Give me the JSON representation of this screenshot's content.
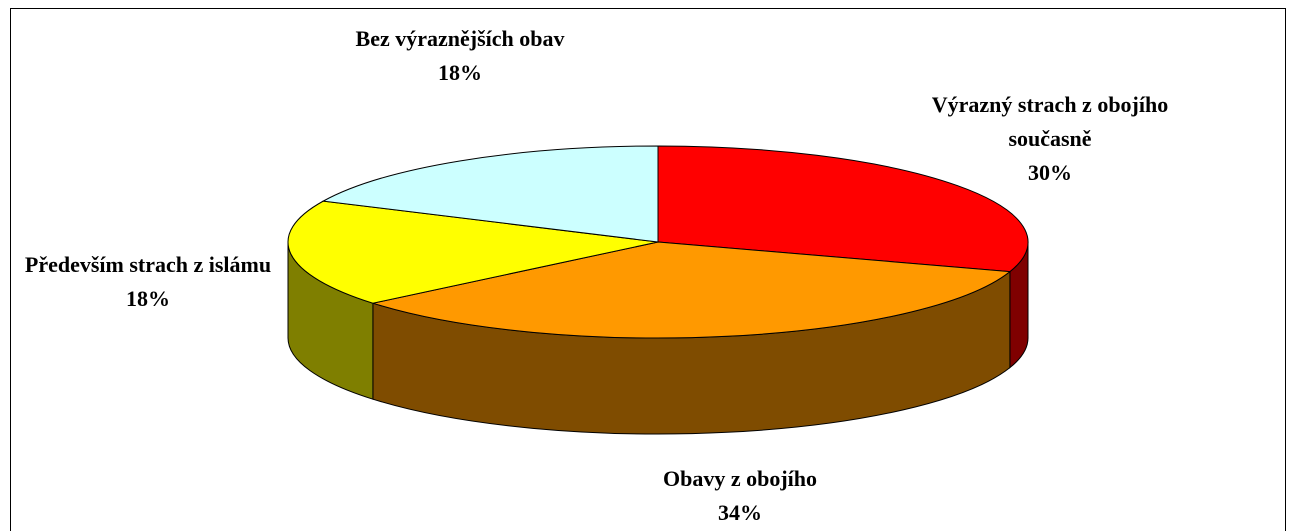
{
  "chart_data": {
    "type": "pie",
    "categories": [
      "Výrazný strach z obojího současně",
      "Obavy z obojího",
      "Především strach z islámu",
      "Bez výraznějších obav"
    ],
    "values": [
      30,
      34,
      18,
      18
    ],
    "value_labels": [
      "30%",
      "34%",
      "18%",
      "18%"
    ],
    "colors": [
      "#ff0000",
      "#ff9900",
      "#ffff00",
      "#ccffff"
    ]
  }
}
